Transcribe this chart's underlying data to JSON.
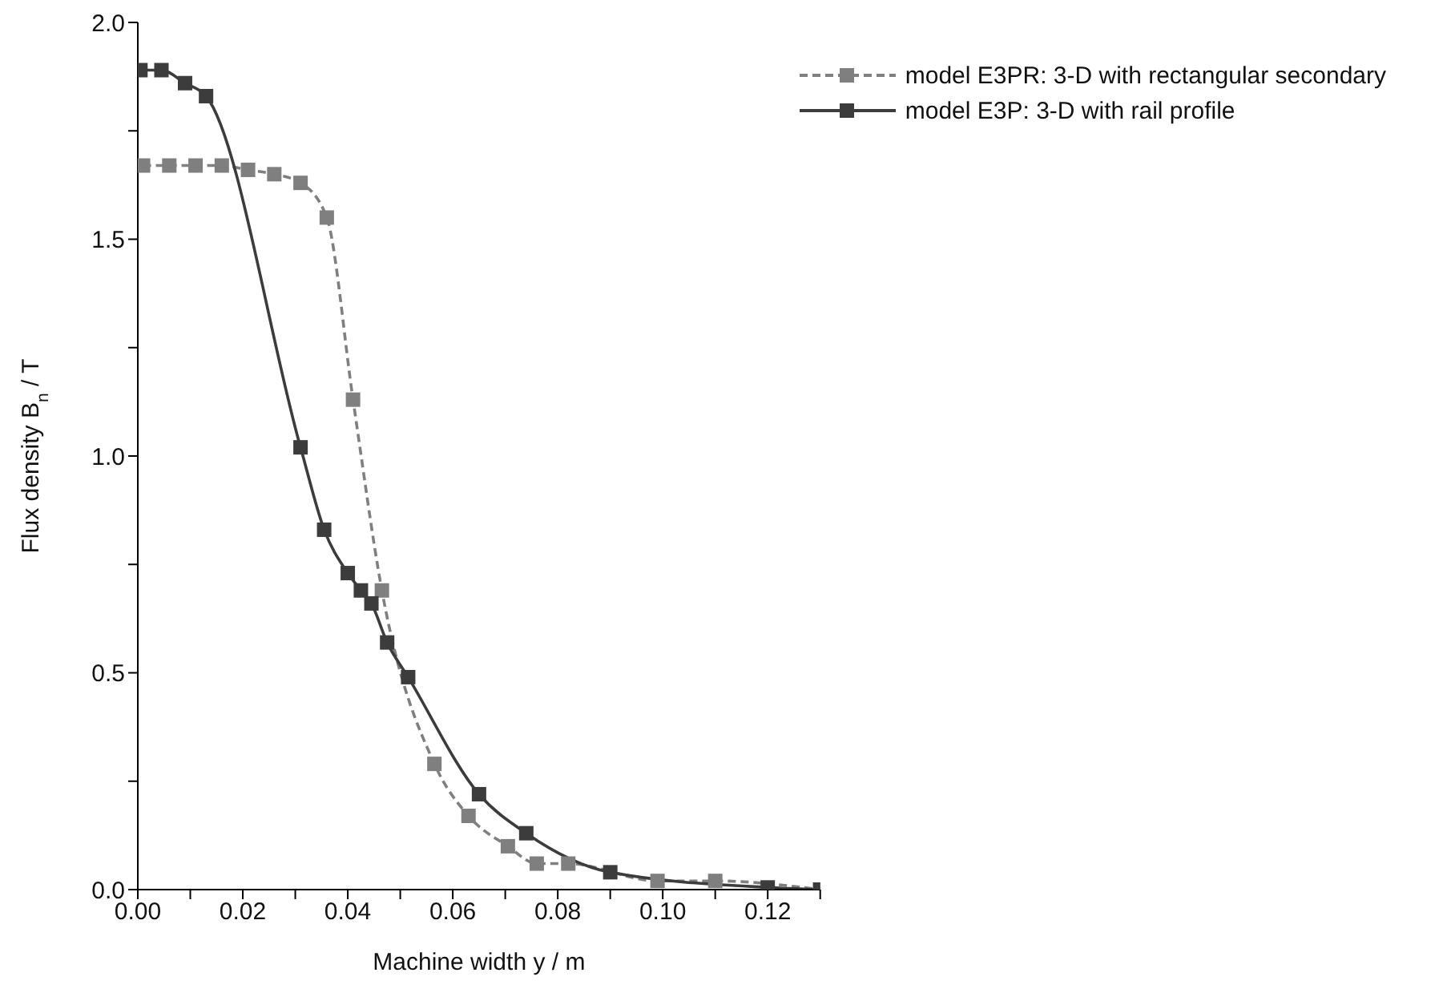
{
  "chart_data": {
    "type": "line",
    "xlabel": "Machine width y / m",
    "ylabel": "Flux density B$_{n}$ / T",
    "xlim": [
      0,
      0.13
    ],
    "ylim": [
      0,
      2.0
    ],
    "xticks": [
      {
        "value": 0,
        "label": "0.00"
      },
      {
        "value": 0.01,
        "label": null
      },
      {
        "value": 0.02,
        "label": "0.02"
      },
      {
        "value": 0.03,
        "label": null
      },
      {
        "value": 0.04,
        "label": "0.04"
      },
      {
        "value": 0.05,
        "label": null
      },
      {
        "value": 0.06,
        "label": "0.06"
      },
      {
        "value": 0.07,
        "label": null
      },
      {
        "value": 0.08,
        "label": "0.08"
      },
      {
        "value": 0.09,
        "label": null
      },
      {
        "value": 0.1,
        "label": "0.10"
      },
      {
        "value": 0.11,
        "label": null
      },
      {
        "value": 0.12,
        "label": "0.12"
      },
      {
        "value": 0.13,
        "label": null
      }
    ],
    "yticks": [
      {
        "value": 0,
        "label": "0.0"
      },
      {
        "value": 0.25,
        "label": null
      },
      {
        "value": 0.5,
        "label": "0.5"
      },
      {
        "value": 0.75,
        "label": null
      },
      {
        "value": 1,
        "label": "1.0"
      },
      {
        "value": 1.25,
        "label": null
      },
      {
        "value": 1.5,
        "label": "1.5"
      },
      {
        "value": 1.75,
        "label": null
      },
      {
        "value": 2,
        "label": "2.0"
      }
    ],
    "grid": false,
    "legend": "top right",
    "marker": "square",
    "series": [
      {
        "name": "model E3PR: 3-D with rectangular secondary",
        "color": "#7f7f7f",
        "line_style": "dashed",
        "x": [
          0.001,
          0.006,
          0.011,
          0.016,
          0.021,
          0.026,
          0.031,
          0.036,
          0.041,
          0.0465,
          0.0565,
          0.063,
          0.0705,
          0.076,
          0.082,
          0.099,
          0.11,
          0.13
        ],
        "values": [
          1.67,
          1.67,
          1.67,
          1.67,
          1.66,
          1.65,
          1.63,
          1.55,
          1.13,
          0.69,
          0.29,
          0.17,
          0.1,
          0.06,
          0.06,
          0.02,
          0.02,
          0.0
        ]
      },
      {
        "name": "model E3P: 3-D with rail profile",
        "color": "#3c3c3c",
        "line_style": "solid",
        "x": [
          0.0005,
          0.0045,
          0.009,
          0.013,
          0.031,
          0.0355,
          0.04,
          0.0425,
          0.0445,
          0.0475,
          0.0515,
          0.065,
          0.074,
          0.09,
          0.12,
          0.13
        ],
        "values": [
          1.89,
          1.89,
          1.86,
          1.83,
          1.02,
          0.83,
          0.73,
          0.69,
          0.66,
          0.57,
          0.49,
          0.22,
          0.13,
          0.04,
          0.005,
          0.0
        ]
      }
    ]
  }
}
